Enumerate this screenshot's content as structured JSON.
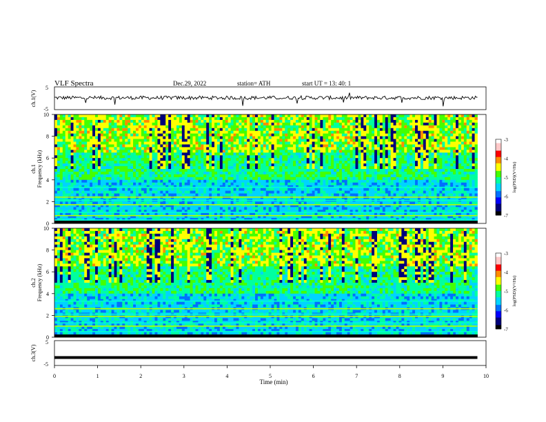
{
  "header": {
    "title": "VLF  Spectra",
    "date": "Dec.29, 2022",
    "station": "station= ATH",
    "start_time": "start  UT  =    13: 40: 1"
  },
  "colors": {
    "spectrogram_scale": [
      "#000000",
      "#00007a",
      "#0000ff",
      "#0070ff",
      "#00d4ff",
      "#00ffa0",
      "#44ff00",
      "#ffff00",
      "#ff8c00",
      "#ff0000",
      "#ffc8c8",
      "#ffffff"
    ],
    "trace": "#000000"
  },
  "chart_data": [
    {
      "type": "line",
      "panel": "ch1_waveform",
      "ylabel": "ch.1(V)",
      "ylim": [
        -5,
        5
      ],
      "yticks": [
        "5",
        "-5"
      ],
      "xlim": [
        0,
        10
      ],
      "series": [
        {
          "values_description_level": 0.2
        }
      ]
    },
    {
      "type": "heatmap",
      "panel": "ch1_spectrogram",
      "ylabel_line1": "ch.1",
      "ylabel_line2": "Frequency  (kHz)",
      "ylim": [
        0,
        10
      ],
      "yticks": [
        "10",
        "8",
        "6",
        "4",
        "2",
        "0"
      ],
      "xlim": [
        0,
        9.8
      ],
      "colorbar": {
        "label": "log(PSD)(V²/Hz)",
        "ticks": [
          "-3",
          "-4",
          "-5",
          "-6",
          "-7"
        ],
        "range": [
          -7,
          -3
        ]
      },
      "bands_khz": [
        0.3,
        0.7,
        1.0,
        1.7,
        2.1,
        2.4,
        3.3
      ]
    },
    {
      "type": "heatmap",
      "panel": "ch2_spectrogram",
      "ylabel_line1": "ch.2",
      "ylabel_line2": "Frequency  (kHz)",
      "ylim": [
        0,
        10
      ],
      "yticks": [
        "10",
        "8",
        "6",
        "4",
        "2",
        "0"
      ],
      "xlim": [
        0,
        9.8
      ],
      "colorbar": {
        "label": "log(PSD)(V²/Hz)",
        "ticks": [
          "-3",
          "-4",
          "-5",
          "-6",
          "-7"
        ],
        "range": [
          -7,
          -3
        ]
      },
      "bands_khz": [
        0.5,
        1.0,
        1.3,
        1.9,
        2.1,
        2.6,
        3.3
      ]
    },
    {
      "type": "line",
      "panel": "ch3_waveform",
      "ylabel": "ch.3(V)",
      "ylim": [
        -5,
        5
      ],
      "yticks": [
        "5",
        "-5"
      ],
      "xlim": [
        0,
        10
      ],
      "series": [
        {
          "values_description_level": -1.8
        }
      ]
    }
  ],
  "x_axis": {
    "label": "Time  (min)",
    "ticks": [
      "0",
      "1",
      "2",
      "3",
      "4",
      "5",
      "6",
      "7",
      "8",
      "9",
      "10"
    ],
    "range": [
      0,
      10
    ]
  }
}
